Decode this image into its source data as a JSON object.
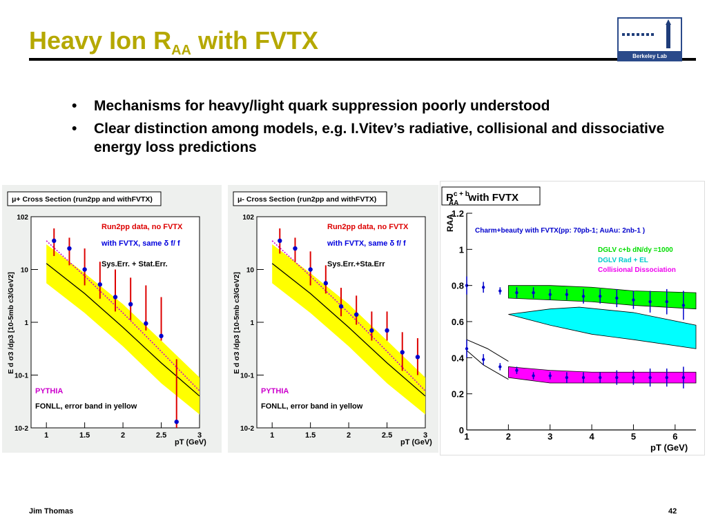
{
  "slide": {
    "title_main": "Heavy Ion R",
    "title_sub": "AA",
    "title_rest": " with FVTX",
    "bullets": [
      "Mechanisms for heavy/light quark suppression poorly understood",
      "Clear distinction among models,  e.g.  I.Vitev’s radiative, collisional and dissociative energy loss predictions"
    ],
    "bullet_symbol": "•",
    "footer_left": "Jim Thomas",
    "footer_right": "42",
    "logo_text": "Berkeley Lab"
  },
  "colors": {
    "title": "#b5a800",
    "data_points": "#0000cc",
    "error_bars": "#dd0000",
    "band": "#ffff00",
    "green_band": "#00ff00",
    "cyan_band": "#00ffff",
    "magenta_band": "#ff00ff"
  },
  "chart_data": [
    {
      "type": "scatter",
      "title": "μ+ Cross Section (run2pp and withFVTX)",
      "xlabel": "pT (GeV)",
      "ylabel": "E d σ3 /dp3 [10-5mb c3/GeV2]",
      "xlim": [
        0.8,
        3.0
      ],
      "ylim": [
        0.01,
        100
      ],
      "yscale": "log",
      "x_ticks": [
        "1",
        "1.5",
        "2",
        "2.5",
        "3"
      ],
      "y_ticks": [
        "10-2",
        "10-1",
        "1",
        "10",
        "102"
      ],
      "legend": [
        "Run2pp data, no FVTX",
        "with FVTX, same δ f/ f",
        "Sys.Err. + Stat.Err."
      ],
      "annotations": [
        "PYTHIA",
        "FONLL, error band in yellow"
      ],
      "series": [
        {
          "name": "with FVTX, same δ f/ f",
          "x": [
            1.1,
            1.3,
            1.5,
            1.7,
            1.9,
            2.1,
            2.3,
            2.5,
            2.7
          ],
          "y": [
            35,
            25,
            10,
            5.2,
            3.0,
            2.2,
            0.95,
            0.55,
            0.013
          ],
          "err_low": [
            18,
            12,
            5,
            2.8,
            1.6,
            1.1,
            0.7,
            0.45,
            0.01
          ],
          "err_high": [
            60,
            40,
            25,
            14,
            10,
            7,
            5,
            3,
            0.2
          ]
        }
      ],
      "fonll_central": [
        [
          1.0,
          13
        ],
        [
          1.5,
          3.5
        ],
        [
          2.0,
          0.8
        ],
        [
          2.5,
          0.17
        ],
        [
          3.0,
          0.04
        ]
      ],
      "fonll_band_low": [
        [
          1.0,
          5.5
        ],
        [
          1.5,
          1.5
        ],
        [
          2.0,
          0.35
        ],
        [
          2.5,
          0.07
        ],
        [
          3.0,
          0.018
        ]
      ],
      "fonll_band_high": [
        [
          1.0,
          30
        ],
        [
          1.5,
          8.5
        ],
        [
          2.0,
          2.2
        ],
        [
          2.5,
          0.45
        ],
        [
          3.0,
          0.09
        ]
      ],
      "pythia": [
        [
          1.0,
          35
        ],
        [
          1.5,
          7.5
        ],
        [
          2.0,
          1.5
        ],
        [
          2.5,
          0.28
        ],
        [
          3.0,
          0.05
        ]
      ]
    },
    {
      "type": "scatter",
      "title": "μ- Cross Section (run2pp and withFVTX)",
      "xlabel": "pT (GeV)",
      "ylabel": "E d σ3 /dp3 [10-5mb c3/GeV2]",
      "xlim": [
        0.8,
        3.0
      ],
      "ylim": [
        0.01,
        100
      ],
      "yscale": "log",
      "x_ticks": [
        "1",
        "1.5",
        "2",
        "2.5",
        "3"
      ],
      "y_ticks": [
        "10-2",
        "10-1",
        "1",
        "10",
        "102"
      ],
      "legend": [
        "Run2pp data, no FVTX",
        "with FVTX, same δ f/ f",
        "Sys.Err.+Sta.Err"
      ],
      "annotations": [
        "PYTHIA",
        "FONLL, error band in yellow"
      ],
      "series": [
        {
          "name": "with FVTX, same δ f/ f",
          "x": [
            1.1,
            1.3,
            1.5,
            1.7,
            1.9,
            2.1,
            2.3,
            2.5,
            2.7,
            2.9
          ],
          "y": [
            35,
            25,
            10,
            5.5,
            2.0,
            1.4,
            0.7,
            0.7,
            0.27,
            0.22
          ],
          "err_low": [
            20,
            14,
            5,
            3.5,
            1.3,
            0.9,
            0.45,
            0.45,
            0.12,
            0.1
          ],
          "err_high": [
            60,
            40,
            22,
            12,
            4.5,
            3.2,
            1.6,
            1.6,
            0.65,
            0.5
          ]
        }
      ],
      "fonll_central": [
        [
          1.0,
          13
        ],
        [
          1.5,
          3.5
        ],
        [
          2.0,
          0.8
        ],
        [
          2.5,
          0.17
        ],
        [
          3.0,
          0.04
        ]
      ],
      "fonll_band_low": [
        [
          1.0,
          5.5
        ],
        [
          1.5,
          1.5
        ],
        [
          2.0,
          0.35
        ],
        [
          2.5,
          0.07
        ],
        [
          3.0,
          0.018
        ]
      ],
      "fonll_band_high": [
        [
          1.0,
          30
        ],
        [
          1.5,
          8.5
        ],
        [
          2.0,
          2.2
        ],
        [
          2.5,
          0.45
        ],
        [
          3.0,
          0.09
        ]
      ],
      "pythia": [
        [
          1.0,
          35
        ],
        [
          1.5,
          7.5
        ],
        [
          2.0,
          1.5
        ],
        [
          2.5,
          0.28
        ],
        [
          3.0,
          0.05
        ]
      ]
    },
    {
      "type": "scatter",
      "title_main": "R",
      "title_sup": "c + b",
      "title_sub": "AA",
      "title_rest": " with FVTX",
      "subtitle": "Charm+beauty with FVTX(pp: 70pb-1; AuAu: 2nb-1 )",
      "xlabel": "pT (GeV)",
      "ylabel": "RAA",
      "xlim": [
        1,
        6.5
      ],
      "ylim": [
        0,
        1.2
      ],
      "x_ticks": [
        "1",
        "2",
        "3",
        "4",
        "5",
        "6"
      ],
      "y_ticks": [
        "0",
        "0.2",
        "0.4",
        "0.6",
        "0.8",
        "1",
        "1.2"
      ],
      "legend": [
        "DGLV c+b dN/dy =1000",
        "DGLV Rad + EL",
        "Collisional Dissociation"
      ],
      "series": [
        {
          "name": "DGLV c+b dN/dy =1000",
          "x": [
            1.0,
            1.4,
            1.8,
            2.2,
            2.6,
            3.0,
            3.4,
            3.8,
            4.2,
            4.6,
            5.0,
            5.4,
            5.8,
            6.2
          ],
          "y": [
            0.8,
            0.79,
            0.77,
            0.76,
            0.76,
            0.75,
            0.75,
            0.74,
            0.74,
            0.73,
            0.72,
            0.71,
            0.71,
            0.69
          ],
          "err": [
            0.05,
            0.03,
            0.02,
            0.03,
            0.03,
            0.03,
            0.03,
            0.04,
            0.04,
            0.05,
            0.05,
            0.06,
            0.07,
            0.08
          ]
        },
        {
          "name": "Collisional Dissociation",
          "x": [
            1.0,
            1.4,
            1.8,
            2.2,
            2.6,
            3.0,
            3.4,
            3.8,
            4.2,
            4.6,
            5.0,
            5.4,
            5.8,
            6.2
          ],
          "y": [
            0.45,
            0.39,
            0.35,
            0.33,
            0.3,
            0.3,
            0.29,
            0.29,
            0.29,
            0.29,
            0.29,
            0.29,
            0.29,
            0.29
          ],
          "err": [
            0.05,
            0.03,
            0.02,
            0.02,
            0.02,
            0.02,
            0.03,
            0.03,
            0.03,
            0.04,
            0.04,
            0.05,
            0.05,
            0.06
          ]
        }
      ],
      "green_band_low": [
        [
          2.0,
          0.73
        ],
        [
          3.0,
          0.72
        ],
        [
          4.0,
          0.71
        ],
        [
          5.0,
          0.69
        ],
        [
          6.5,
          0.67
        ]
      ],
      "green_band_high": [
        [
          2.0,
          0.8
        ],
        [
          3.0,
          0.8
        ],
        [
          4.0,
          0.79
        ],
        [
          5.0,
          0.77
        ],
        [
          6.5,
          0.76
        ]
      ],
      "cyan_band_low": [
        [
          2.0,
          0.64
        ],
        [
          3.0,
          0.58
        ],
        [
          4.0,
          0.53
        ],
        [
          5.0,
          0.5
        ],
        [
          6.5,
          0.45
        ]
      ],
      "cyan_band_high": [
        [
          2.0,
          0.64
        ],
        [
          3.0,
          0.67
        ],
        [
          3.7,
          0.68
        ],
        [
          5.0,
          0.65
        ],
        [
          6.5,
          0.58
        ]
      ],
      "magenta_band_low": [
        [
          2.0,
          0.29
        ],
        [
          3.0,
          0.26
        ],
        [
          4.0,
          0.26
        ],
        [
          5.0,
          0.26
        ],
        [
          6.5,
          0.26
        ]
      ],
      "magenta_band_high": [
        [
          2.0,
          0.35
        ],
        [
          3.0,
          0.33
        ],
        [
          4.0,
          0.32
        ],
        [
          5.0,
          0.32
        ],
        [
          6.5,
          0.32
        ]
      ],
      "black_curve_upper": [
        [
          1.0,
          0.5
        ],
        [
          1.5,
          0.45
        ],
        [
          2.0,
          0.38
        ]
      ],
      "black_curve_lower": [
        [
          1.0,
          0.44
        ],
        [
          1.4,
          0.36
        ],
        [
          2.0,
          0.28
        ]
      ]
    }
  ]
}
